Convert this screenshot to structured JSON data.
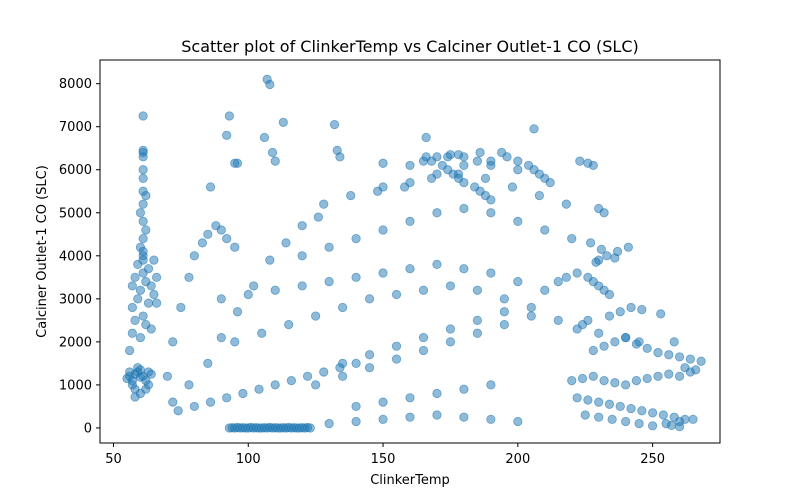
{
  "chart_data": {
    "type": "scatter",
    "title": "Scatter plot of ClinkerTemp vs Calciner Outlet-1 CO (SLC)",
    "xlabel": "ClinkerTemp",
    "ylabel": "Calciner Outlet-1 CO (SLC)",
    "xlim": [
      45,
      275
    ],
    "ylim": [
      -350,
      8550
    ],
    "xticks": [
      50,
      100,
      150,
      200,
      250
    ],
    "yticks": [
      0,
      1000,
      2000,
      3000,
      4000,
      5000,
      6000,
      7000,
      8000
    ],
    "grid": false,
    "legend": "none",
    "point_color": "#1f77b4",
    "point_alpha": 0.5,
    "series": [
      {
        "x": [
          55,
          56,
          57,
          58,
          59,
          60,
          56,
          57,
          58,
          59,
          60,
          61,
          62,
          63,
          64,
          56,
          57,
          58,
          60,
          62,
          64,
          57,
          59,
          61,
          63,
          65,
          57,
          58,
          59,
          60,
          61,
          62,
          61,
          61,
          61,
          61,
          61,
          61,
          61,
          61,
          61,
          61,
          61,
          60,
          62,
          60,
          62,
          61,
          61,
          63,
          65,
          66,
          64,
          66,
          58,
          60,
          62,
          63,
          93,
          94,
          95,
          96,
          97,
          98,
          99,
          100,
          101,
          102,
          103,
          104,
          105,
          106,
          107,
          108,
          109,
          110,
          111,
          112,
          113,
          114,
          115,
          116,
          117,
          118,
          119,
          120,
          121,
          122,
          123,
          70,
          72,
          75,
          78,
          80,
          83,
          85,
          88,
          90,
          92,
          95,
          72,
          78,
          85,
          90,
          96,
          102,
          108,
          114,
          120,
          126,
          74,
          80,
          86,
          92,
          98,
          104,
          110,
          116,
          122,
          128,
          134,
          140,
          90,
          100,
          110,
          120,
          130,
          140,
          150,
          160,
          170,
          180,
          190,
          200,
          210,
          95,
          105,
          115,
          125,
          135,
          145,
          155,
          165,
          175,
          185,
          195,
          205,
          215,
          120,
          130,
          140,
          150,
          160,
          170,
          180,
          190,
          200,
          210,
          220,
          125,
          135,
          145,
          155,
          165,
          175,
          185,
          195,
          205,
          130,
          140,
          150,
          160,
          170,
          180,
          190,
          200,
          135,
          145,
          155,
          165,
          175,
          185,
          195,
          140,
          150,
          160,
          170,
          180,
          190,
          128,
          138,
          148,
          158,
          168,
          178,
          188,
          198,
          208,
          218,
          150,
          160,
          170,
          180,
          190,
          200,
          160,
          165,
          170,
          175,
          180,
          185,
          190,
          166,
          168,
          172,
          174,
          176,
          178,
          180,
          184,
          186,
          188,
          190,
          194,
          196,
          200,
          204,
          206,
          208,
          210,
          212,
          92,
          93,
          107,
          108,
          113,
          132,
          133,
          134,
          106,
          109,
          110,
          86,
          95,
          96,
          206,
          223,
          226,
          228,
          230,
          232,
          166,
          150,
          174,
          178,
          186,
          220,
          224,
          228,
          232,
          236,
          240,
          244,
          248,
          252,
          256,
          260,
          264,
          266,
          222,
          226,
          230,
          234,
          238,
          242,
          246,
          250,
          254,
          258,
          262,
          225,
          230,
          235,
          240,
          245,
          250,
          255,
          260,
          265,
          228,
          232,
          236,
          240,
          244,
          248,
          252,
          256,
          260,
          264,
          268,
          238,
          242,
          246,
          234,
          226,
          224,
          222,
          230,
          240,
          245,
          253,
          258,
          262,
          257,
          260,
          215,
          218,
          222,
          226,
          228,
          230,
          232,
          234,
          230,
          233,
          237,
          241,
          227,
          231,
          236,
          229
        ],
        "y": [
          1150,
          1200,
          1100,
          1250,
          1300,
          1180,
          1300,
          1000,
          900,
          1400,
          1350,
          1200,
          1100,
          1300,
          1250,
          1800,
          2200,
          2500,
          2100,
          2400,
          2300,
          2800,
          3000,
          2600,
          2900,
          3100,
          3300,
          3500,
          3800,
          3200,
          3600,
          3400,
          4000,
          4400,
          4800,
          5200,
          5500,
          5800,
          6000,
          6300,
          6400,
          6450,
          7250,
          4200,
          4600,
          5000,
          5400,
          3900,
          4100,
          3700,
          3900,
          3500,
          3300,
          2900,
          720,
          800,
          900,
          1000,
          0,
          5,
          0,
          10,
          0,
          5,
          0,
          0,
          10,
          0,
          5,
          0,
          0,
          5,
          0,
          10,
          0,
          5,
          0,
          0,
          5,
          0,
          10,
          0,
          5,
          0,
          0,
          5,
          0,
          10,
          0,
          1200,
          2000,
          2800,
          3500,
          4000,
          4300,
          4500,
          4700,
          4600,
          4400,
          4200,
          600,
          1000,
          1500,
          2100,
          2700,
          3300,
          3900,
          4300,
          4700,
          4900,
          400,
          500,
          600,
          700,
          800,
          900,
          1000,
          1100,
          1200,
          1300,
          1400,
          1500,
          3000,
          3100,
          3200,
          3300,
          3400,
          3500,
          3600,
          3700,
          3800,
          3700,
          3600,
          3400,
          3200,
          2000,
          2200,
          2400,
          2600,
          2800,
          3000,
          3100,
          3200,
          3300,
          3200,
          3000,
          2800,
          2500,
          4000,
          4200,
          4400,
          4600,
          4800,
          5000,
          5100,
          5000,
          4800,
          4600,
          4400,
          1000,
          1200,
          1400,
          1600,
          1800,
          2000,
          2200,
          2400,
          2600,
          100,
          150,
          200,
          250,
          300,
          250,
          200,
          150,
          1500,
          1700,
          1900,
          2100,
          2300,
          2500,
          2700,
          500,
          600,
          700,
          800,
          900,
          1000,
          5200,
          5400,
          5500,
          5600,
          5800,
          5900,
          5800,
          5600,
          5400,
          5200,
          5600,
          5700,
          5900,
          6100,
          6200,
          6000,
          6100,
          6200,
          6300,
          6350,
          6300,
          6200,
          6100,
          6300,
          6200,
          6100,
          6000,
          5900,
          5800,
          5700,
          5600,
          5500,
          5400,
          5300,
          6400,
          6300,
          6200,
          6100,
          6000,
          5900,
          5800,
          5700,
          6800,
          7250,
          8100,
          7980,
          7100,
          7050,
          6450,
          6300,
          6750,
          6400,
          6200,
          5600,
          6150,
          6150,
          6950,
          6200,
          6150,
          6100,
          5100,
          5000,
          6750,
          6150,
          6300,
          6350,
          6400,
          1100,
          1150,
          1200,
          1100,
          1050,
          1000,
          1100,
          1150,
          1200,
          1250,
          1200,
          1300,
          1350,
          700,
          650,
          600,
          550,
          500,
          450,
          400,
          350,
          300,
          250,
          200,
          300,
          250,
          200,
          150,
          100,
          50,
          100,
          150,
          200,
          1800,
          1900,
          2000,
          2100,
          1950,
          1850,
          1750,
          1700,
          1650,
          1600,
          1550,
          2700,
          2800,
          2750,
          2600,
          2500,
          2400,
          2300,
          2200,
          2100,
          2000,
          2650,
          2000,
          1400,
          60,
          30,
          3400,
          3500,
          3600,
          3500,
          3400,
          3300,
          3200,
          3100,
          3900,
          4000,
          4100,
          4200,
          4300,
          4150,
          3950,
          3850
        ]
      }
    ]
  }
}
